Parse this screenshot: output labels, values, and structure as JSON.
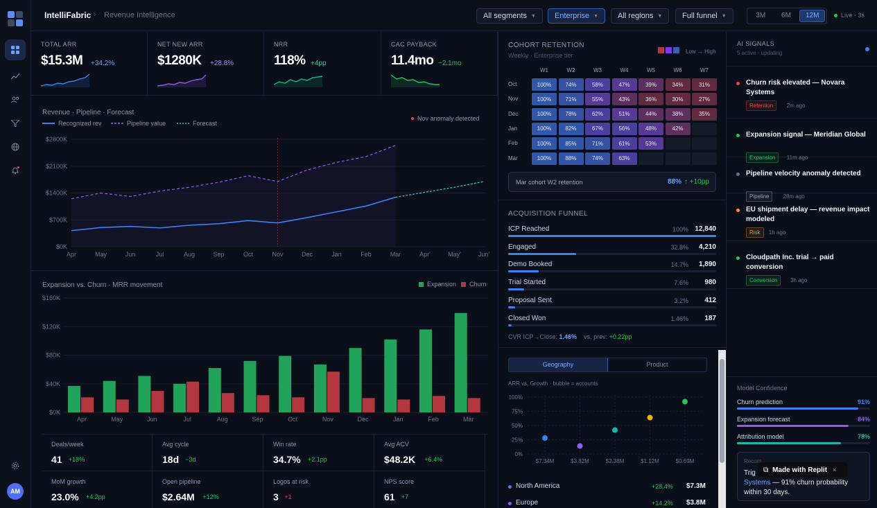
{
  "app": {
    "name": "IntelliFabric",
    "breadcrumb": "Revenue Intelligence"
  },
  "filters": {
    "segments": "All segments",
    "enterprise": "Enterprise",
    "regions": "All regions",
    "funnel": "Full funnel"
  },
  "ranges": [
    "3M",
    "6M",
    "12M"
  ],
  "live": "Live · 3s",
  "avatar": "AM",
  "nav_icons": [
    "dashboard-icon",
    "trend-icon",
    "users-icon",
    "filter-icon",
    "globe-icon",
    "bell-icon"
  ],
  "kpis": [
    {
      "label": "TOTAL ARR",
      "value": "$15.3M",
      "delta": "+34.2%",
      "color": "#3b82f6"
    },
    {
      "label": "NET NEW ARR",
      "value": "$1280K",
      "delta": "+28.8%",
      "color": "#8b5cf6"
    },
    {
      "label": "NRR",
      "value": "118%",
      "delta": "+4pp",
      "color": "#10b981"
    },
    {
      "label": "CAC PAYBACK",
      "value": "11.4mo",
      "delta": "−2.1mo",
      "color": "#22c55e"
    }
  ],
  "revenue_chart": {
    "title": "Revenue · Pipeline · Forecast",
    "legend": [
      "Recognized rev",
      "Pipeline value",
      "Forecast"
    ],
    "anomaly": "Nov anomaly detected"
  },
  "mrr_chart": {
    "title": "Expansion vs. Churn · MRR movement",
    "legend": [
      "Expansion",
      "Churn"
    ]
  },
  "chart_data": [
    {
      "type": "line",
      "title": "Revenue · Pipeline · Forecast",
      "categories": [
        "Apr",
        "May",
        "Jun",
        "Jul",
        "Aug",
        "Sep",
        "Oct",
        "Nov",
        "Dec",
        "Jan",
        "Feb",
        "Mar",
        "Apr'",
        "May'",
        "Jun'"
      ],
      "yticks": [
        "$0K",
        "$700K",
        "$1400K",
        "$2100K",
        "$2800K"
      ],
      "ylim": [
        0,
        2800
      ],
      "series": [
        {
          "name": "Recognized rev",
          "values": [
            420,
            500,
            530,
            490,
            560,
            600,
            680,
            620,
            760,
            910,
            1060,
            1290,
            null,
            null,
            null
          ],
          "color": "#3b82f6"
        },
        {
          "name": "Pipeline value",
          "values": [
            1250,
            1400,
            1310,
            1450,
            1550,
            1680,
            1850,
            1700,
            2000,
            2200,
            2350,
            2640,
            null,
            null,
            null
          ],
          "color": "#8b5cf6"
        },
        {
          "name": "Forecast",
          "values": [
            null,
            null,
            null,
            null,
            null,
            null,
            null,
            null,
            null,
            null,
            null,
            1290,
            1420,
            1550,
            1700
          ],
          "color": "#2dd4bf"
        }
      ]
    },
    {
      "type": "bar",
      "title": "Expansion vs. Churn · MRR movement",
      "categories": [
        "Apr",
        "May",
        "Jun",
        "Jul",
        "Aug",
        "Sep",
        "Oct",
        "Nov",
        "Dec",
        "Jan",
        "Feb",
        "Mar"
      ],
      "yticks": [
        "$0K",
        "$40K",
        "$80K",
        "$120K",
        "$160K"
      ],
      "ylim": [
        0,
        160
      ],
      "series": [
        {
          "name": "Expansion",
          "values": [
            37,
            44,
            51,
            40,
            62,
            72,
            79,
            67,
            90,
            102,
            116,
            139
          ],
          "color": "#22a35a"
        },
        {
          "name": "Churn",
          "values": [
            21,
            18,
            30,
            43,
            27,
            24,
            21,
            57,
            20,
            18,
            23,
            20
          ],
          "color": "#b4373f"
        }
      ]
    },
    {
      "type": "scatter",
      "title": "ARR vs. Growth · bubble = accounts",
      "xticks": [
        "$7.34M",
        "$3.82M",
        "$2.38M",
        "$1.12M",
        "$0.69M"
      ],
      "yticks": [
        "0%",
        "25%",
        "50%",
        "75%",
        "100%"
      ],
      "points": [
        {
          "x": "$7.34M",
          "y": 28,
          "color": "#3b82f6"
        },
        {
          "x": "$3.82M",
          "y": 14,
          "color": "#8b5cf6"
        },
        {
          "x": "$2.38M",
          "y": 42,
          "color": "#14b8a6"
        },
        {
          "x": "$1.12M",
          "y": 64,
          "color": "#eab308"
        },
        {
          "x": "$0.69M",
          "y": 92,
          "color": "#22c55e"
        }
      ]
    }
  ],
  "stats": [
    {
      "label": "Deals/week",
      "value": "41",
      "delta": "+18%",
      "color": "#22c55e"
    },
    {
      "label": "Avg cycle",
      "value": "18d",
      "delta": "−3d",
      "color": "#22c55e"
    },
    {
      "label": "Win rate",
      "value": "34.7%",
      "delta": "+2.1pp",
      "color": "#22c55e"
    },
    {
      "label": "Avg ACV",
      "value": "$48.2K",
      "delta": "+6.4%",
      "color": "#22c55e"
    },
    {
      "label": "MoM growth",
      "value": "23.0%",
      "delta": "+4.2pp",
      "color": "#22c55e"
    },
    {
      "label": "Open pipeline",
      "value": "$2.64M",
      "delta": "+12%",
      "color": "#22c55e"
    },
    {
      "label": "Logos at risk",
      "value": "3",
      "delta": "+1",
      "color": "#ef4444"
    },
    {
      "label": "NPS score",
      "value": "61",
      "delta": "+7",
      "color": "#22c55e"
    }
  ],
  "cohort": {
    "title": "COHORT RETENTION",
    "subtitle": "Weekly · Enterprise tier",
    "legend": "Low → High",
    "weeks": [
      "W1",
      "W2",
      "W3",
      "W4",
      "W5",
      "W6",
      "W7"
    ],
    "rows": [
      {
        "label": "Oct",
        "cells": [
          "100%",
          "74%",
          "58%",
          "47%",
          "39%",
          "34%",
          "31%"
        ]
      },
      {
        "label": "Nov",
        "cells": [
          "100%",
          "71%",
          "55%",
          "43%",
          "36%",
          "30%",
          "27%"
        ]
      },
      {
        "label": "Dec",
        "cells": [
          "100%",
          "78%",
          "62%",
          "51%",
          "44%",
          "38%",
          "35%"
        ]
      },
      {
        "label": "Jan",
        "cells": [
          "100%",
          "82%",
          "67%",
          "56%",
          "48%",
          "42%",
          ""
        ]
      },
      {
        "label": "Feb",
        "cells": [
          "100%",
          "85%",
          "71%",
          "61%",
          "53%",
          "",
          ""
        ]
      },
      {
        "label": "Mar",
        "cells": [
          "100%",
          "88%",
          "74%",
          "63%",
          "",
          "",
          ""
        ]
      }
    ],
    "callout": {
      "label": "Mar cohort W2 retention",
      "value": "88%",
      "delta": "↑ +10pp"
    }
  },
  "funnel": {
    "title": "ACQUISITION FUNNEL",
    "rows": [
      {
        "name": "ICP Reached",
        "pct": "100%",
        "count": "12,840",
        "fill": 100
      },
      {
        "name": "Engaged",
        "pct": "32.8%",
        "count": "4,210",
        "fill": 32.8
      },
      {
        "name": "Demo Booked",
        "pct": "14.7%",
        "count": "1,890",
        "fill": 14.7
      },
      {
        "name": "Trial Started",
        "pct": "7.6%",
        "count": "980",
        "fill": 7.6
      },
      {
        "name": "Proposal Sent",
        "pct": "3.2%",
        "count": "412",
        "fill": 3.2
      },
      {
        "name": "Closed Won",
        "pct": "1.46%",
        "count": "187",
        "fill": 1.46
      }
    ],
    "cvr_label": "CVR ICP→Close:",
    "cvr_value": "1.46%",
    "prev_label": "vs. prev:",
    "prev_value": "+0.22pp"
  },
  "geo": {
    "tabs": [
      "Geography",
      "Product"
    ],
    "subtitle": "ARR vs. Growth · bubble = accounts",
    "regions": [
      {
        "name": "North America",
        "delta": "+28.4%",
        "value": "$7.3M",
        "color": "#3b82f6"
      },
      {
        "name": "Europe",
        "delta": "+14.2%",
        "value": "$3.8M",
        "color": "#8b5cf6"
      }
    ]
  },
  "signals": {
    "title": "AI SIGNALS",
    "subtitle": "5 active · updating",
    "items": [
      {
        "title": "Churn risk elevated — Novara Systems",
        "tag": "Retention",
        "ago": "2m ago",
        "dot": "#ef4444",
        "tagcolor": "#ef4444"
      },
      {
        "title": "Expansion signal — Meridian Global",
        "tag": "Expansion",
        "ago": "11m ago",
        "dot": "#22c55e",
        "tagcolor": "#22c55e"
      },
      {
        "title": "Pipeline velocity anomaly detected",
        "tag": "Pipeline",
        "ago": "28m ago",
        "dot": "#6b7280",
        "tagcolor": "#9ca3af"
      },
      {
        "title": "EU shipment delay — revenue impact modeled",
        "tag": "Risk",
        "ago": "1h ago",
        "dot": "#f59e0b",
        "tagcolor": "#f59e0b"
      },
      {
        "title": "Cloudpath Inc. trial → paid conversion",
        "tag": "Conversion",
        "ago": "3h ago",
        "dot": "#22c55e",
        "tagcolor": "#22c55e"
      }
    ]
  },
  "confidence": {
    "title": "Model Confidence",
    "items": [
      {
        "name": "Churn prediction",
        "value": "91%",
        "fill": 91,
        "color": "#3b82f6"
      },
      {
        "name": "Expansion forecast",
        "value": "84%",
        "fill": 84,
        "color": "#8b5cf6"
      },
      {
        "name": "Attribution model",
        "value": "78%",
        "fill": 78,
        "color": "#14b8a6"
      }
    ],
    "rec_label": "Recom",
    "rec_line1": "Trig",
    "rec_link": "Systems",
    "rec_rest": " — 91% churn probability within 30 days."
  },
  "badge": {
    "label": "Made with Replit",
    "close": "×"
  }
}
